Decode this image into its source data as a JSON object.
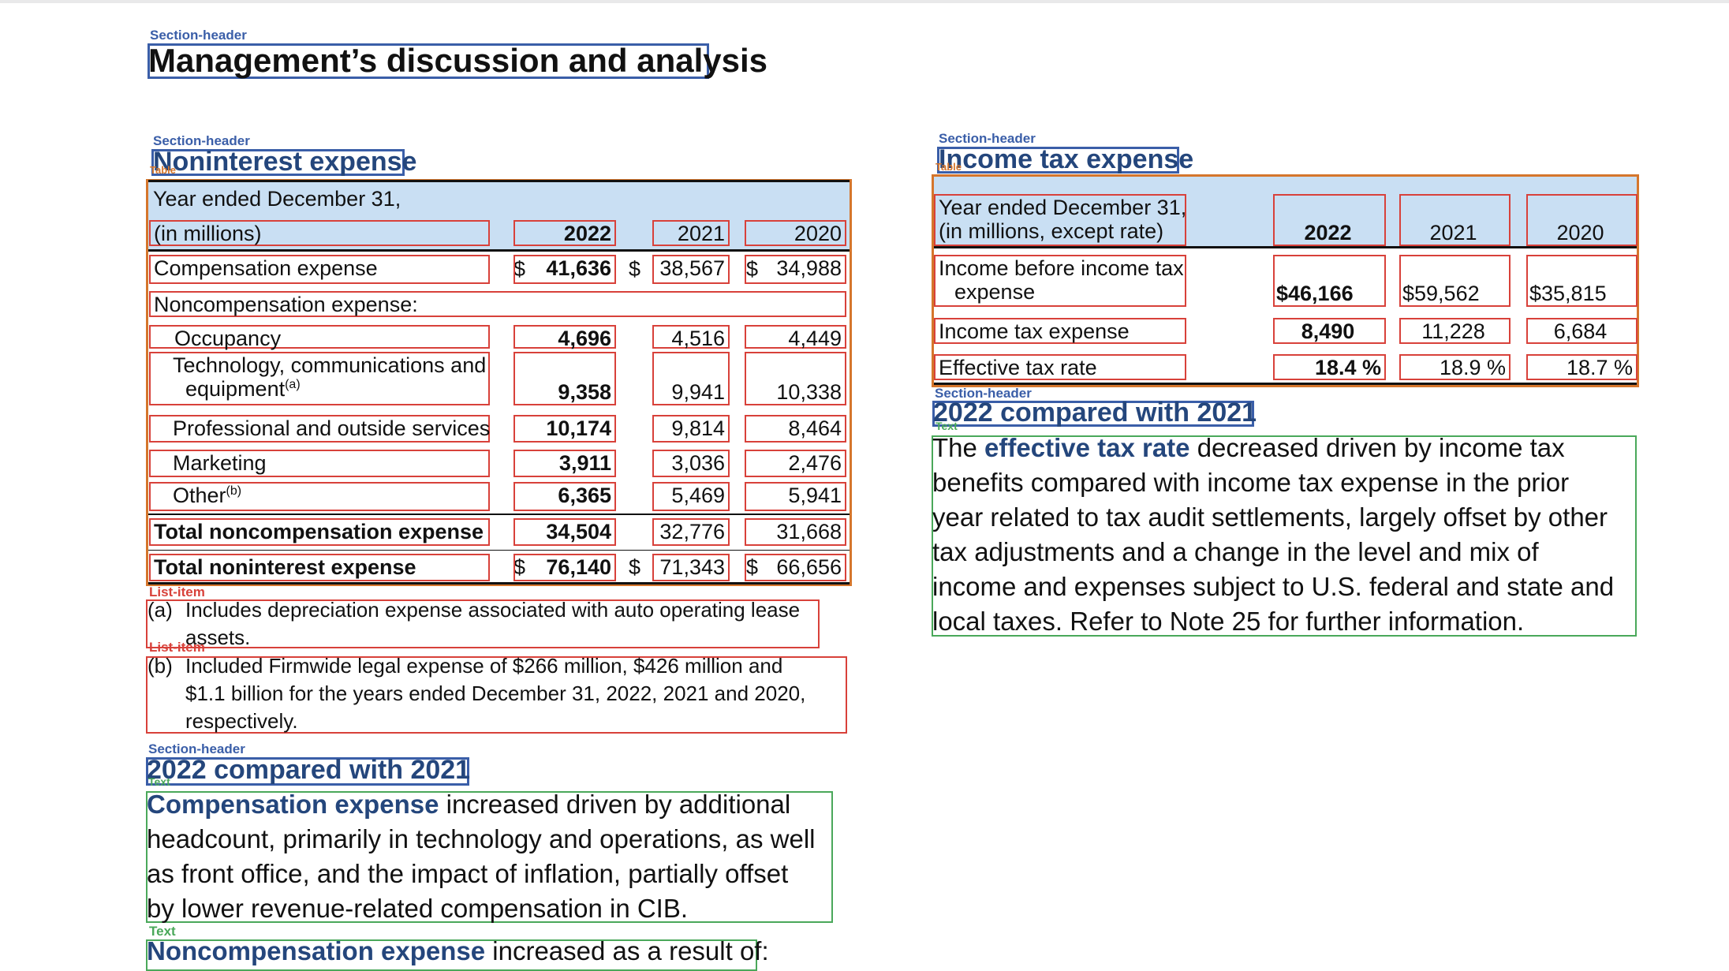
{
  "tags": {
    "section_header": "Section-header",
    "table": "Table",
    "list_item": "List-item",
    "text": "Text"
  },
  "page_title": "Management’s discussion and analysis",
  "nonint": {
    "title": "Noninterest expense",
    "header_line1": "Year ended December 31,",
    "header_line2": "(in millions)",
    "years": [
      "2022",
      "2021",
      "2020"
    ],
    "dollar": "$",
    "rows": {
      "comp": {
        "label": "Compensation expense",
        "v2022": "41,636",
        "v2021": "38,567",
        "v2020": "34,988"
      },
      "noncomp_head": {
        "label": "Noncompensation expense:"
      },
      "occupancy": {
        "label": "Occupancy",
        "v2022": "4,696",
        "v2021": "4,516",
        "v2020": "4,449"
      },
      "tech": {
        "label_line1": "Technology, communications and",
        "label_line2": "equipment",
        "sup": "(a)",
        "v2022": "9,358",
        "v2021": "9,941",
        "v2020": "10,338"
      },
      "prof": {
        "label": "Professional and outside services",
        "v2022": "10,174",
        "v2021": "9,814",
        "v2020": "8,464"
      },
      "marketing": {
        "label": "Marketing",
        "v2022": "3,911",
        "v2021": "3,036",
        "v2020": "2,476"
      },
      "other": {
        "label": "Other",
        "sup": "(b)",
        "v2022": "6,365",
        "v2021": "5,469",
        "v2020": "5,941"
      },
      "total_noncomp": {
        "label": "Total noncompensation expense",
        "v2022": "34,504",
        "v2021": "32,776",
        "v2020": "31,668"
      },
      "total_nonint": {
        "label": "Total noninterest expense",
        "v2022": "76,140",
        "v2021": "71,343",
        "v2020": "66,656"
      }
    },
    "footnote_a_marker": "(a)",
    "footnote_a_line1": "Includes depreciation expense associated with auto operating lease",
    "footnote_a_line2": "assets.",
    "footnote_b_marker": "(b)",
    "footnote_b_line1": "Included Firmwide legal expense of $266 million, $426 million and",
    "footnote_b_line2": "$1.1 billion for the years ended December 31, 2022, 2021 and 2020,",
    "footnote_b_line3": "respectively."
  },
  "left_compare": {
    "title": "2022 compared with 2021",
    "para1_kw": "Compensation expense",
    "para1_line1_rest": " increased driven by additional",
    "para1_line2": "headcount, primarily in technology and operations, as well",
    "para1_line3": "as front office, and the impact of inflation, partially offset",
    "para1_line4": "by lower revenue-related compensation in CIB.",
    "para2_kw": "Noncompensation expense",
    "para2_rest": " increased as a result of:"
  },
  "tax": {
    "title": "Income tax expense",
    "header_line1": "Year ended December 31,",
    "header_line2": "(in millions, except rate)",
    "years": [
      "2022",
      "2021",
      "2020"
    ],
    "rows": {
      "pretax": {
        "label_line1": "Income before income tax",
        "label_line2": "expense",
        "v2022": "$46,166",
        "v2021": "$59,562",
        "v2020": "$35,815"
      },
      "tax": {
        "label": "Income tax expense",
        "v2022": "8,490",
        "v2021": "11,228",
        "v2020": "6,684"
      },
      "rate": {
        "label": "Effective tax rate",
        "v2022": "18.4 %",
        "v2021": "18.9 %",
        "v2020": "18.7 %"
      }
    }
  },
  "right_compare": {
    "title": "2022 compared with 2021",
    "line1_pre": "The ",
    "line1_kw": "effective tax rate",
    "line1_rest": " decreased driven by income tax",
    "line2": "benefits compared with income tax expense in the prior",
    "line3": "year related to tax audit settlements, largely offset by other",
    "line4": "tax adjustments and a change in the level and mix of",
    "line5": "income and expenses subject to U.S. federal and state and",
    "line6": "local taxes. Refer to Note 25 for further information."
  }
}
